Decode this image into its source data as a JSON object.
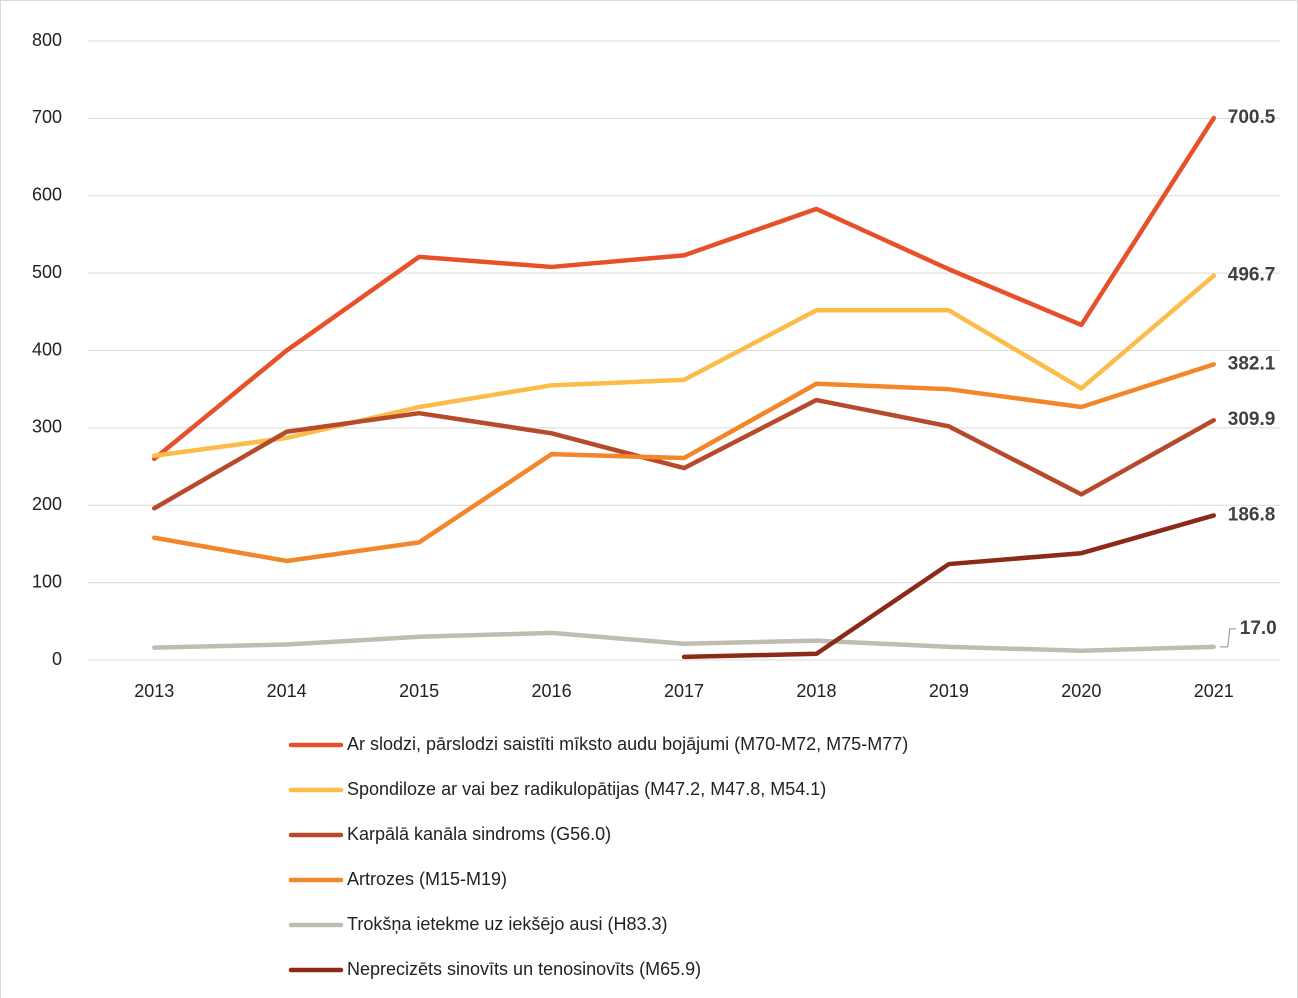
{
  "chart_data": {
    "type": "line",
    "categories": [
      "2013",
      "2014",
      "2015",
      "2016",
      "2017",
      "2018",
      "2019",
      "2020",
      "2021"
    ],
    "ylim": [
      0,
      800
    ],
    "yticks": [
      0,
      100,
      200,
      300,
      400,
      500,
      600,
      700,
      800
    ],
    "grid": true,
    "legend": "bottom",
    "series": [
      {
        "name": "Ar slodzi, pārslodzi saistīti mīksto audu bojājumi (M70-M72, M75-M77)",
        "color": "#e8502a",
        "values": [
          260,
          400,
          521,
          508,
          523,
          583,
          505,
          433,
          700.5
        ],
        "value_labels": [
          null,
          null,
          null,
          null,
          null,
          null,
          null,
          null,
          "700.5"
        ]
      },
      {
        "name": "Spondiloze ar vai bez radikulopātijas (M47.2, M47.8, M54.1)",
        "color": "#fbbc4a",
        "values": [
          264,
          287,
          327,
          355,
          362,
          452,
          452,
          351,
          496.7
        ],
        "value_labels": [
          null,
          null,
          null,
          null,
          null,
          null,
          null,
          null,
          "496.7"
        ]
      },
      {
        "name": "Karpālā kanāla sindroms (G56.0)",
        "color": "#b84a2c",
        "values": [
          196,
          295,
          319,
          293,
          248,
          336,
          302,
          214,
          309.9
        ],
        "value_labels": [
          null,
          null,
          null,
          null,
          null,
          null,
          null,
          null,
          "309.9"
        ]
      },
      {
        "name": "Artrozes (M15-M19)",
        "color": "#f4862a",
        "values": [
          158,
          128,
          152,
          266,
          261,
          357,
          350,
          327,
          382.1
        ],
        "value_labels": [
          null,
          null,
          null,
          null,
          null,
          null,
          null,
          null,
          "382.1"
        ]
      },
      {
        "name": "Trokšņa ietekme uz iekšējo ausi (H83.3)",
        "color": "#bfbdb0",
        "values": [
          16,
          20,
          30,
          35,
          21,
          25,
          17,
          12,
          17.0
        ],
        "value_labels": [
          null,
          null,
          null,
          null,
          null,
          null,
          null,
          null,
          "17.0"
        ]
      },
      {
        "name": "Neprecizēts sinovīts un tenosinovīts (M65.9)",
        "color": "#8b2a16",
        "values": [
          null,
          null,
          null,
          null,
          4,
          8,
          124,
          138,
          186.8
        ],
        "value_labels": [
          null,
          null,
          null,
          null,
          null,
          null,
          null,
          null,
          "186.8"
        ]
      }
    ]
  }
}
